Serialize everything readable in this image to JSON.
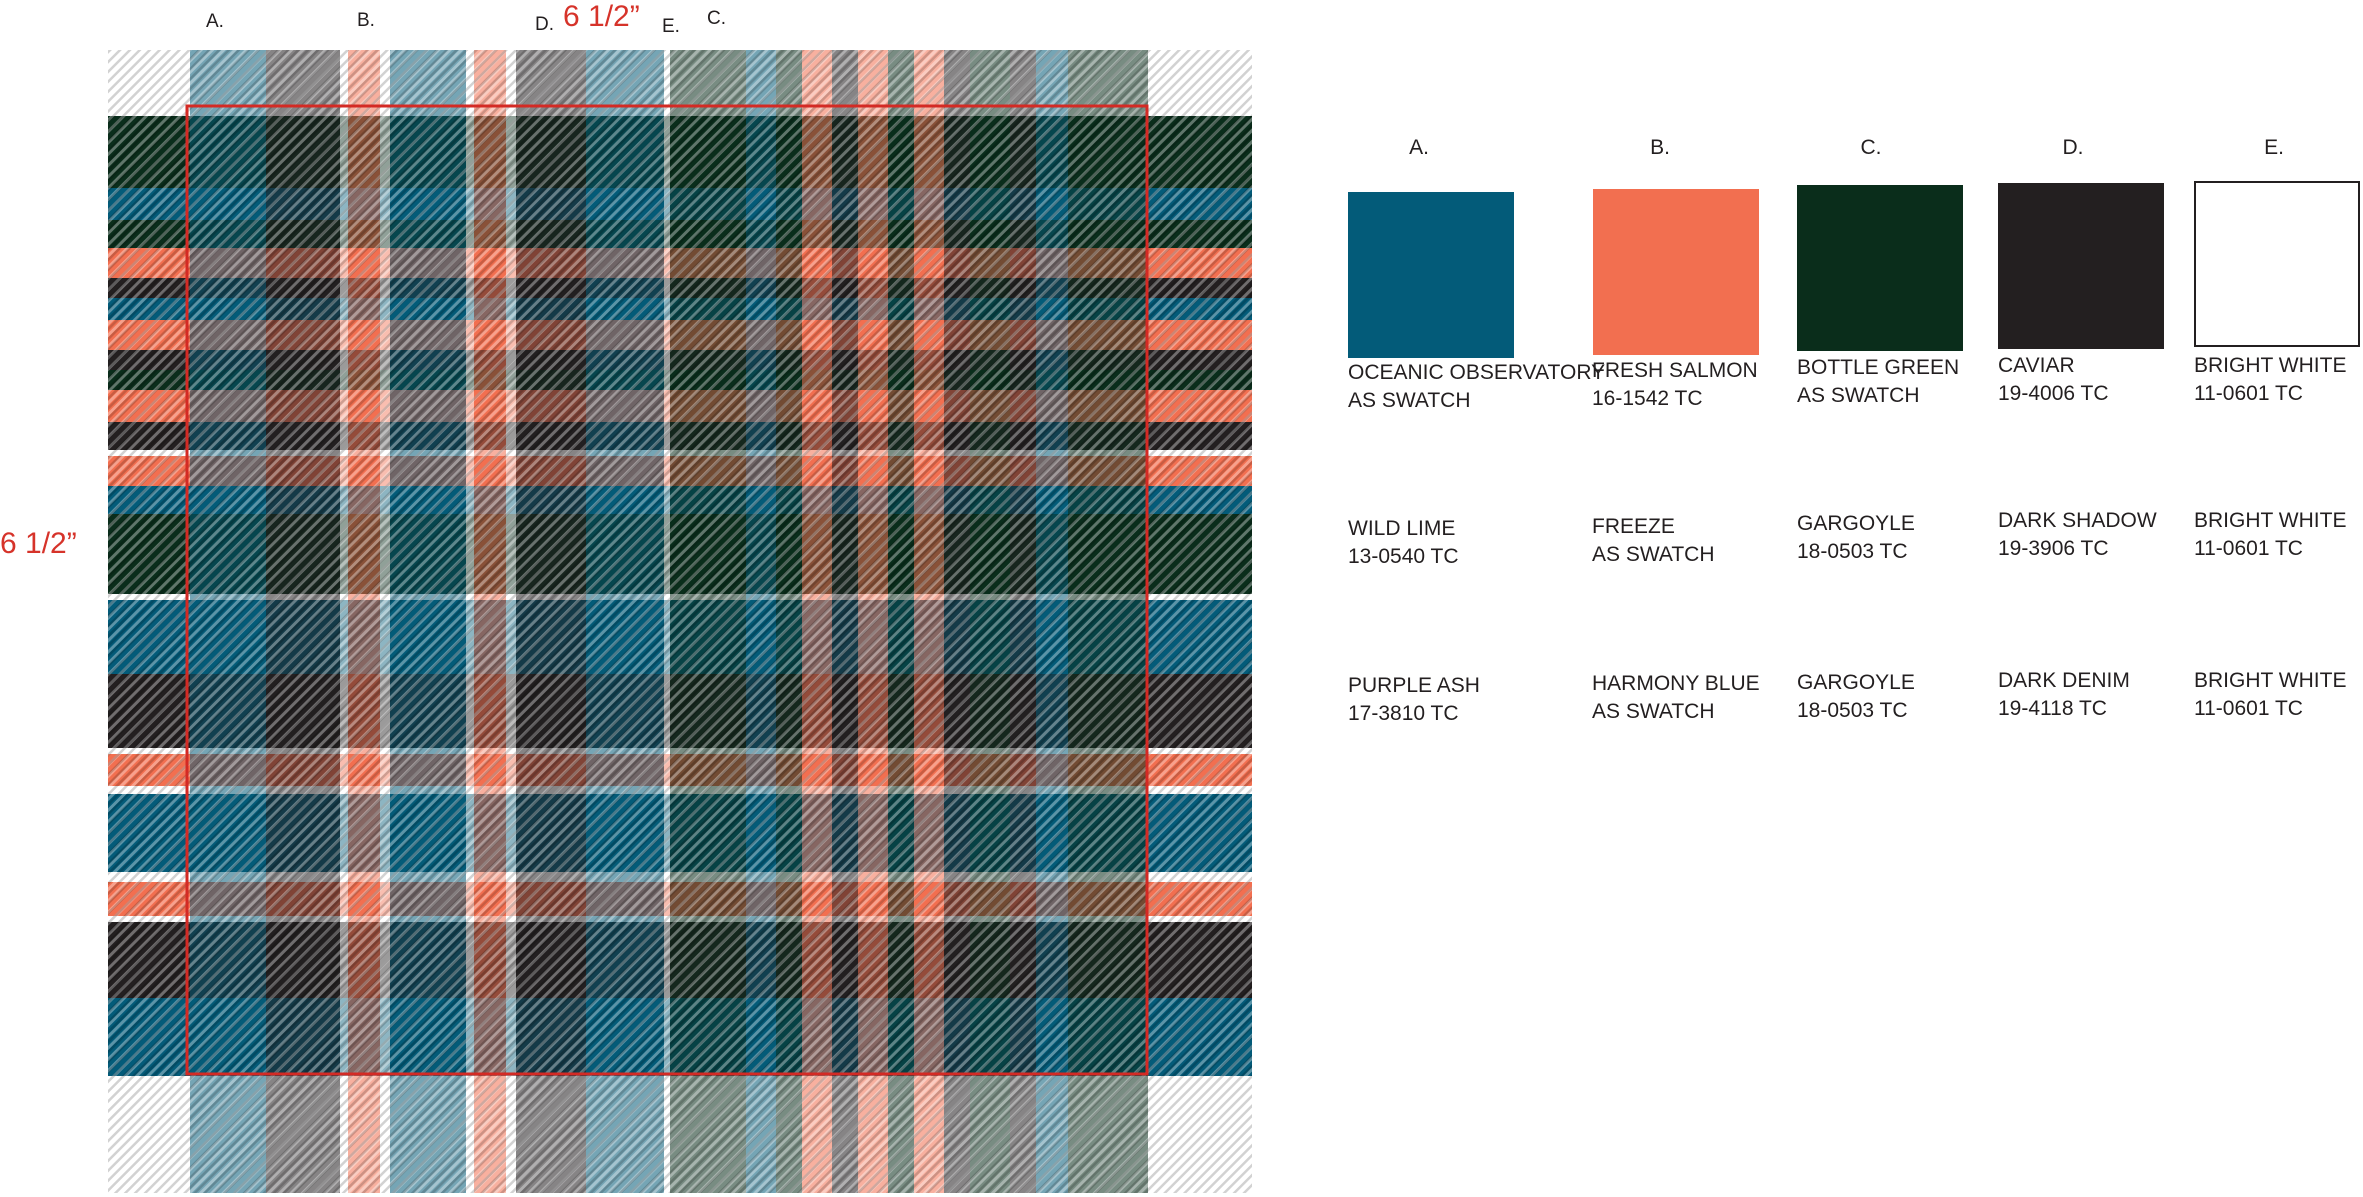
{
  "plaid": {
    "column_labels": [
      "A.",
      "B.",
      "D.",
      "E.",
      "C."
    ],
    "dimension_top": "6 1/2”",
    "dimension_side": "6 1/2”",
    "colors": {
      "A": "#035b79",
      "B": "#f26f50",
      "C": "#0a2d1b",
      "D": "#231f20",
      "E": "#ffffff",
      "outline": "#d42a24"
    }
  },
  "palette": {
    "headers": [
      "A.",
      "B.",
      "C.",
      "D.",
      "E."
    ],
    "swatch_colors": [
      "#035b79",
      "#f26f50",
      "#0a2d1b",
      "#231f20",
      "#ffffff"
    ],
    "rows": [
      [
        {
          "name": "OCEANIC OBSERVATORY",
          "code": "AS SWATCH"
        },
        {
          "name": "FRESH SALMON",
          "code": "16-1542 TC"
        },
        {
          "name": "BOTTLE GREEN",
          "code": "AS SWATCH"
        },
        {
          "name": "CAVIAR",
          "code": "19-4006 TC"
        },
        {
          "name": "BRIGHT WHITE",
          "code": "11-0601 TC"
        }
      ],
      [
        {
          "name": "WILD LIME",
          "code": "13-0540 TC"
        },
        {
          "name": "FREEZE",
          "code": "AS SWATCH"
        },
        {
          "name": "GARGOYLE",
          "code": "18-0503 TC"
        },
        {
          "name": "DARK SHADOW",
          "code": "19-3906 TC"
        },
        {
          "name": "BRIGHT WHITE",
          "code": "11-0601 TC"
        }
      ],
      [
        {
          "name": "PURPLE ASH",
          "code": "17-3810 TC"
        },
        {
          "name": "HARMONY BLUE",
          "code": "AS SWATCH"
        },
        {
          "name": "GARGOYLE",
          "code": "18-0503 TC"
        },
        {
          "name": "DARK DENIM",
          "code": "19-4118 TC"
        },
        {
          "name": "BRIGHT WHITE",
          "code": "11-0601 TC"
        }
      ]
    ]
  }
}
